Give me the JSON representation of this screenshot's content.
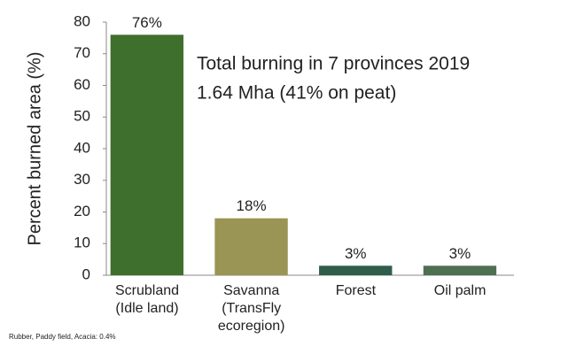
{
  "chart_data": {
    "type": "bar",
    "y_label": "Percent burned area (%)",
    "categories": [
      "Scrubland\n(Idle land)",
      "Savanna\n(TransFly\necoregion)",
      "Forest",
      "Oil palm"
    ],
    "values": [
      76,
      18,
      3,
      3
    ],
    "value_labels": [
      "76%",
      "18%",
      "3%",
      "3%"
    ],
    "colors": [
      "#3f6f2c",
      "#9a9455",
      "#2f5d4a",
      "#4f6f52"
    ],
    "ylim": [
      0,
      80
    ],
    "yticks": [
      0,
      10,
      20,
      30,
      40,
      50,
      60,
      70,
      80
    ],
    "annotations": [
      "Total  burning in 7 provinces 2019",
      "1.64 Mha (41% on peat)"
    ],
    "footnote": "Rubber, Paddy field, Acacia: 0.4%"
  }
}
